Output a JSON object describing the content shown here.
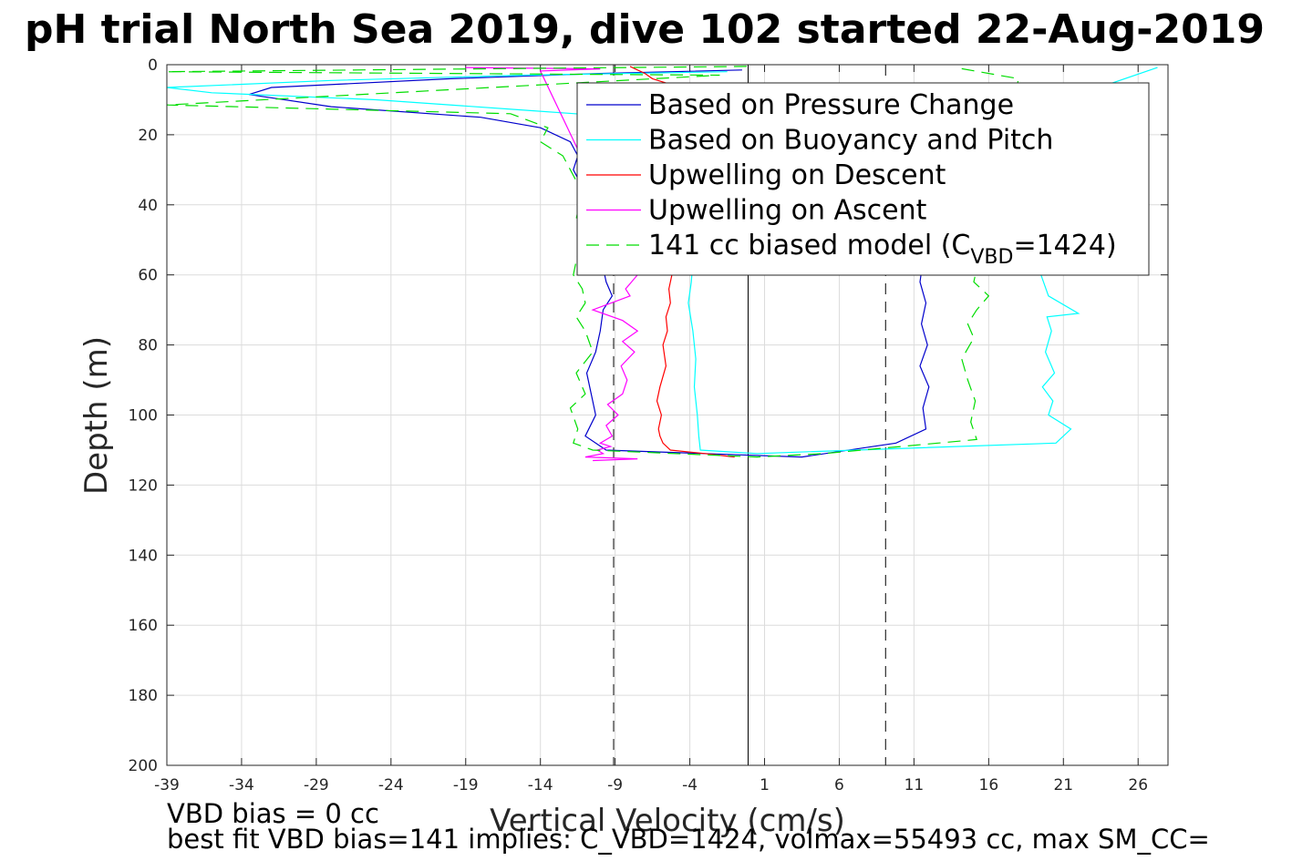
{
  "chart_data": {
    "type": "line",
    "title": "pH trial North Sea 2019, dive 102 started 22-Aug-2019",
    "xlabel": "Vertical Velocity (cm/s)",
    "ylabel": "Depth (m)",
    "xlim": [
      -39,
      28
    ],
    "ylim": [
      200,
      0
    ],
    "y_reversed": true,
    "xticks": [
      "-39",
      "-34",
      "-29",
      "-24",
      "-19",
      "-14",
      "-9",
      "-4",
      "1",
      "6",
      "11",
      "16",
      "21",
      "26"
    ],
    "yticks": [
      "0",
      "20",
      "40",
      "60",
      "80",
      "100",
      "120",
      "140",
      "160",
      "180",
      "200"
    ],
    "grid": true,
    "legend_position": "top-right",
    "reference_lines": {
      "solid_x": -0.1,
      "dashed_x": [
        -9.1,
        9.1
      ]
    },
    "series": [
      {
        "name": "Based on Pressure Change",
        "color": "#0000cc",
        "style": "solid",
        "x": [
          -0.5,
          -10,
          -20,
          -32,
          -33.5,
          -28,
          -18,
          -14,
          -12,
          -11.5,
          -11.8,
          -11.3,
          -10.7,
          -10.5,
          -10.2,
          -10.5,
          -10.4,
          -9.8,
          -9.6,
          -9.2,
          -9.8,
          -10.0,
          -10.3,
          -10.9,
          -10.6,
          -10.3,
          -11.0,
          -9.6,
          3.5,
          9.8,
          11.8,
          11.6,
          12.0,
          11.4,
          11.9,
          11.5,
          11.8,
          11.4,
          11.6,
          11.0
        ],
        "y": [
          1.5,
          2.5,
          4,
          6.5,
          8.5,
          12,
          15,
          18,
          22,
          26,
          30,
          34,
          38,
          42,
          46,
          50,
          54,
          58,
          62,
          66,
          70,
          76,
          82,
          88,
          94,
          100,
          106,
          110,
          112,
          108,
          104,
          98,
          92,
          86,
          80,
          74,
          68,
          62,
          56,
          52
        ]
      },
      {
        "name": "Based on Buoyancy and Pitch",
        "color": "#00ffff",
        "style": "solid",
        "x": [
          -1.5,
          -15,
          -28,
          -39,
          -36,
          -25,
          -15,
          -5,
          -4.1,
          -4.0,
          -4.2,
          -3.9,
          -4.1,
          -3.8,
          -3.9,
          -4.1,
          -3.8,
          -3.6,
          -3.7,
          -3.5,
          -3.4,
          -3.3,
          0.5,
          20.5,
          21.5,
          20.0,
          20.3,
          19.6,
          20.4,
          19.8,
          20.2,
          19.9,
          22.0,
          20.0,
          19.5,
          19.8,
          19.4,
          20.0,
          21.0,
          27.3
        ],
        "y": [
          2,
          3,
          4.5,
          6.5,
          8,
          10,
          13,
          16,
          20,
          26,
          32,
          40,
          48,
          56,
          62,
          68,
          76,
          84,
          92,
          100,
          106,
          110,
          111,
          108,
          104,
          100,
          96,
          92,
          88,
          82,
          76,
          72,
          71,
          66,
          60,
          52,
          40,
          30,
          10,
          0.8
        ]
      },
      {
        "name": "Upwelling on Descent",
        "color": "#ff0000",
        "style": "solid",
        "x": [
          -8,
          -7.5,
          -7,
          -6.5,
          -5,
          -5.2,
          -5.4,
          -5.3,
          -5.6,
          -5.5,
          -5.8,
          -5.6,
          -6.0,
          -6.2,
          -5.9,
          -6.1,
          -6.0,
          -5.8,
          -5.3,
          -3,
          -1
        ],
        "y": [
          0.5,
          1.5,
          2.5,
          4,
          6,
          60,
          64,
          68,
          72,
          76,
          80,
          86,
          92,
          96,
          100,
          104,
          106,
          108,
          110,
          111,
          112
        ]
      },
      {
        "name": "Upwelling on Ascent",
        "color": "#ff00ff",
        "style": "solid",
        "x": [
          -19,
          -10,
          -14,
          -7.5,
          -7.9,
          -8.3,
          -8.0,
          -10.5,
          -8.5,
          -7.5,
          -8.5,
          -7.7,
          -8.6,
          -8.2,
          -8.5,
          -9.5,
          -8.8,
          -9.6,
          -9.2,
          -10.0,
          -9.3,
          -10.2,
          -9.8,
          -11.0,
          -7.5,
          -10.5
        ],
        "y": [
          0.8,
          1.2,
          1.8,
          60,
          62,
          64,
          66,
          70,
          73,
          76,
          79,
          82,
          86,
          90,
          94,
          97,
          100,
          103,
          106,
          108,
          109,
          110,
          111,
          112,
          112.5,
          113
        ]
      },
      {
        "name": "141 cc biased model (C_VBD=1424)",
        "legend_main": "141 cc biased model (C",
        "legend_sub": "VBD",
        "legend_tail": "=1424)",
        "color": "#00dd00",
        "style": "dashed",
        "x": [
          -0.2,
          -39,
          -2,
          -39,
          -16,
          -13.5,
          -14,
          -12.5,
          -12,
          -11.5,
          -11.4,
          -11.6,
          -11.2,
          -11.4,
          -11.6,
          -11.8,
          -11.2,
          -11.0,
          -11.6,
          -11.0,
          -10.5,
          -11.6,
          -11.0,
          -12.0,
          -11.5,
          -11.8,
          -10.5,
          0.5,
          5,
          15.2,
          14.8,
          15.1,
          14.6,
          14.2,
          15.0,
          14.6,
          15.2,
          16.0,
          15.0,
          18.0,
          14.0
        ],
        "y": [
          0.5,
          2,
          3,
          11.5,
          14,
          18,
          22,
          26,
          30,
          34,
          40,
          44,
          48,
          52,
          56,
          60,
          64,
          68,
          72,
          76,
          82,
          88,
          94,
          98,
          104,
          108,
          110,
          112,
          111,
          107,
          102,
          96,
          90,
          84,
          78,
          74,
          70,
          66,
          62,
          4,
          1
        ]
      }
    ]
  },
  "notes": {
    "bias": "VBD bias = 0 cc",
    "best_fit": "best fit VBD bias=141 implies: C_VBD=1424, volmax=55493 cc, max SM_CC="
  }
}
